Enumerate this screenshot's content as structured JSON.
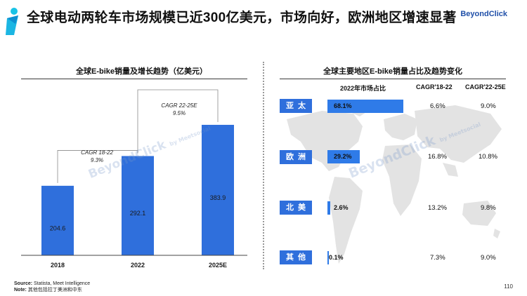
{
  "header": {
    "title": "全球电动两轮车市场规模已近300亿美元，市场向好，欧洲地区增速显著",
    "brand": "BeyondClick"
  },
  "left_panel": {
    "title": "全球E-bike销量及增长趋势（亿美元）",
    "cagr_notes": [
      {
        "label": "CAGR 18-22",
        "value": "9.3%"
      },
      {
        "label": "CAGR 22-25E",
        "value": "9.5%"
      }
    ]
  },
  "right_panel": {
    "title": "全球主要地区E-bike销量占比及趋势变化",
    "headers": {
      "share": "2022年市场占比",
      "cagr1": "CAGR'18-22",
      "cagr2": "CAGR'22-25E"
    },
    "rows": [
      {
        "region": "亚太",
        "share_label": "68.1%",
        "share": 68.1,
        "cagr1": "6.6%",
        "cagr2": "9.0%"
      },
      {
        "region": "欧洲",
        "share_label": "29.2%",
        "share": 29.2,
        "cagr1": "16.8%",
        "cagr2": "10.8%"
      },
      {
        "region": "北美",
        "share_label": "2.6%",
        "share": 2.6,
        "cagr1": "13.2%",
        "cagr2": "9.8%"
      },
      {
        "region": "其他",
        "share_label": "0.1%",
        "share": 0.1,
        "cagr1": "7.3%",
        "cagr2": "9.0%"
      }
    ]
  },
  "watermarks": {
    "main": "BeyondClick",
    "sub": "by Meetsocial"
  },
  "footer": {
    "source_label": "Source:",
    "source_text": "Statista, Meet Intelligence",
    "note_label": "Note:",
    "note_text": "其他包括拉丁美洲和中东",
    "page_number": "110"
  },
  "colors": {
    "bar": "#2f6fdc",
    "accent": "#1f4fa8"
  },
  "chart_data": [
    {
      "type": "bar",
      "title": "全球E-bike销量及增长趋势（亿美元）",
      "categories": [
        "2018",
        "2022",
        "2025E"
      ],
      "values": [
        204.6,
        292.1,
        383.9
      ],
      "xlabel": "",
      "ylabel": "",
      "ylim": [
        0,
        420
      ],
      "grid": false,
      "annotations": [
        {
          "text": "CAGR 18-22",
          "value": "9.3%"
        },
        {
          "text": "CAGR 22-25E",
          "value": "9.5%"
        }
      ]
    },
    {
      "type": "table",
      "title": "全球主要地区E-bike销量占比及趋势变化",
      "columns": [
        "2022年市场占比",
        "CAGR'18-22",
        "CAGR'22-25E"
      ],
      "rows": [
        "亚太",
        "欧洲",
        "北美",
        "其他"
      ],
      "values": [
        [
          68.1,
          6.6,
          9.0
        ],
        [
          29.2,
          16.8,
          10.8
        ],
        [
          2.6,
          13.2,
          9.8
        ],
        [
          0.1,
          7.3,
          9.0
        ]
      ]
    }
  ]
}
